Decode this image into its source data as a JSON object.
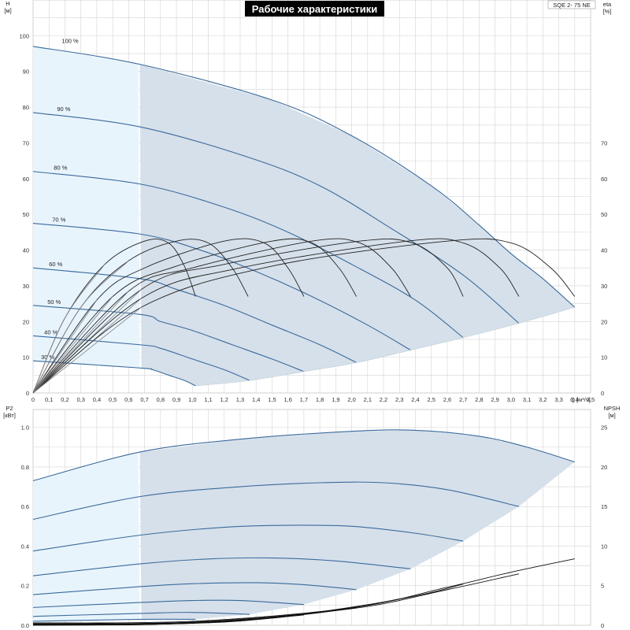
{
  "title": "Рабочие характеристики",
  "model": "SQE 2- 75 NE",
  "colors": {
    "full_region": "#d6e0ea",
    "partial_region": "#e8f4fc",
    "speed_curve": "#3a6a9c",
    "partial_curve": "#8aa6c2",
    "eta_curve": "#222222",
    "npsh_curve": "#111111",
    "grid": "#d4d4d4",
    "title_bg": "#000000"
  },
  "chart_data": [
    {
      "type": "line",
      "name": "head-chart",
      "xlabel": "Q [м³/ч]",
      "ylabel": "H\n[м]",
      "y2label": "eta\n[%]",
      "xlim": [
        0,
        3.5
      ],
      "ylim": [
        0,
        110
      ],
      "y2lim": [
        0,
        110
      ],
      "x_ticks": [
        "0",
        "0,1",
        "0,2",
        "0,3",
        "0,4",
        "0,5",
        "0,6",
        "0,7",
        "0,8",
        "0,9",
        "1,0",
        "1,1",
        "1,2",
        "1,3",
        "1,4",
        "1,5",
        "1,6",
        "1,7",
        "1,8",
        "1,9",
        "2,0",
        "2,1",
        "2,2",
        "2,3",
        "2,4",
        "2,5",
        "2,6",
        "2,7",
        "2,8",
        "2,9",
        "3,0",
        "3,1",
        "3,2",
        "3,3",
        "3,4",
        "3,5"
      ],
      "y_ticks": [
        "0",
        "10",
        "20",
        "30",
        "40",
        "50",
        "60",
        "70",
        "80",
        "90",
        "100"
      ],
      "y2_ticks": [
        "0",
        "10",
        "20",
        "30",
        "40",
        "50",
        "60",
        "70"
      ],
      "min_flow": 0.67,
      "speed_curves": [
        {
          "label": "100 %",
          "label_x": 0.18,
          "label_y": 97.5,
          "points": [
            [
              0,
              97
            ],
            [
              0.67,
              92
            ],
            [
              1.5,
              82
            ],
            [
              2.0,
              72
            ],
            [
              2.5,
              58
            ],
            [
              2.8,
              47
            ],
            [
              3.0,
              39
            ],
            [
              3.2,
              32
            ],
            [
              3.4,
              24
            ]
          ]
        },
        {
          "label": "90 %",
          "label_x": 0.15,
          "label_y": 78.5,
          "points": [
            [
              0,
              78.5
            ],
            [
              0.67,
              74.5
            ],
            [
              1.35,
              66
            ],
            [
              1.8,
              58
            ],
            [
              2.25,
              46
            ],
            [
              2.7,
              33
            ],
            [
              3.05,
              19.5
            ]
          ]
        },
        {
          "label": "80 %",
          "label_x": 0.13,
          "label_y": 62,
          "points": [
            [
              0,
              62
            ],
            [
              0.67,
              58.5
            ],
            [
              1.2,
              52
            ],
            [
              1.6,
              45
            ],
            [
              2.0,
              36
            ],
            [
              2.4,
              26
            ],
            [
              2.7,
              15.5
            ]
          ]
        },
        {
          "label": "70 %",
          "label_x": 0.12,
          "label_y": 47.5,
          "points": [
            [
              0,
              47.5
            ],
            [
              0.67,
              44.5
            ],
            [
              1.05,
              40
            ],
            [
              1.4,
              34
            ],
            [
              1.75,
              27
            ],
            [
              2.1,
              19
            ],
            [
              2.37,
              12
            ]
          ]
        },
        {
          "label": "60 %",
          "label_x": 0.1,
          "label_y": 35,
          "points": [
            [
              0,
              35
            ],
            [
              0.67,
              32
            ],
            [
              0.9,
              29
            ],
            [
              1.2,
              24.5
            ],
            [
              1.5,
              19
            ],
            [
              1.8,
              13.5
            ],
            [
              2.03,
              8.5
            ]
          ]
        },
        {
          "label": "50 %",
          "label_x": 0.09,
          "label_y": 24.5,
          "points": [
            [
              0,
              24.5
            ],
            [
              0.67,
              22
            ],
            [
              0.8,
              20
            ],
            [
              1.0,
              17.5
            ],
            [
              1.25,
              13.5
            ],
            [
              1.5,
              9.5
            ],
            [
              1.7,
              6
            ]
          ]
        },
        {
          "label": "40 %",
          "label_x": 0.07,
          "label_y": 16,
          "points": [
            [
              0,
              16
            ],
            [
              0.67,
              13.5
            ],
            [
              0.8,
              12.5
            ],
            [
              1.0,
              9.5
            ],
            [
              1.2,
              6.5
            ],
            [
              1.36,
              3.5
            ]
          ]
        },
        {
          "label": "30 %",
          "label_x": 0.05,
          "label_y": 9,
          "points": [
            [
              0,
              9
            ],
            [
              0.67,
              7
            ],
            [
              0.75,
              6.5
            ],
            [
              0.85,
              5
            ],
            [
              0.95,
              3.5
            ],
            [
              1.02,
              2
            ]
          ]
        }
      ],
      "eta_curves": [
        {
          "points": [
            [
              0,
              0
            ],
            [
              0.2,
              21
            ],
            [
              0.45,
              36
            ],
            [
              0.7,
              42.5
            ],
            [
              0.85,
              42
            ],
            [
              0.95,
              35.5
            ],
            [
              1.02,
              27
            ]
          ]
        },
        {
          "points": [
            [
              0,
              0
            ],
            [
              0.3,
              24
            ],
            [
              0.6,
              37
            ],
            [
              0.9,
              42.5
            ],
            [
              1.1,
              42
            ],
            [
              1.25,
              35
            ],
            [
              1.35,
              27
            ]
          ]
        },
        {
          "points": [
            [
              0,
              0
            ],
            [
              0.4,
              26
            ],
            [
              0.7,
              35
            ],
            [
              1.2,
              42.5
            ],
            [
              1.45,
              42
            ],
            [
              1.6,
              35
            ],
            [
              1.7,
              27
            ]
          ]
        },
        {
          "points": [
            [
              0,
              0
            ],
            [
              0.5,
              27
            ],
            [
              0.9,
              35.5
            ],
            [
              1.5,
              42.5
            ],
            [
              1.75,
              42
            ],
            [
              1.92,
              35
            ],
            [
              2.03,
              27
            ]
          ]
        },
        {
          "points": [
            [
              0,
              0
            ],
            [
              0.6,
              28.5
            ],
            [
              1.0,
              35
            ],
            [
              1.75,
              42.5
            ],
            [
              2.05,
              42
            ],
            [
              2.25,
              35
            ],
            [
              2.37,
              27
            ]
          ]
        },
        {
          "points": [
            [
              0,
              0
            ],
            [
              0.68,
              29
            ],
            [
              1.2,
              36
            ],
            [
              2.05,
              42.5
            ],
            [
              2.38,
              42
            ],
            [
              2.6,
              35
            ],
            [
              2.7,
              27
            ]
          ]
        },
        {
          "points": [
            [
              0,
              0
            ],
            [
              0.68,
              26.5
            ],
            [
              1.3,
              35
            ],
            [
              2.35,
              42.5
            ],
            [
              2.7,
              42
            ],
            [
              2.93,
              35
            ],
            [
              3.05,
              27
            ]
          ]
        },
        {
          "points": [
            [
              0,
              0
            ],
            [
              0.68,
              24
            ],
            [
              1.5,
              35.5
            ],
            [
              2.6,
              42.5
            ],
            [
              3.0,
              42
            ],
            [
              3.25,
              35
            ],
            [
              3.4,
              27
            ]
          ]
        }
      ],
      "boundary": [
        [
          1.02,
          2
        ],
        [
          1.36,
          3.5
        ],
        [
          1.7,
          6
        ],
        [
          2.03,
          8.5
        ],
        [
          2.37,
          12
        ],
        [
          2.7,
          15.5
        ],
        [
          3.05,
          19.5
        ],
        [
          3.4,
          24
        ]
      ]
    },
    {
      "type": "line",
      "name": "power-chart",
      "xlabel": "",
      "ylabel": "P2\n[кВт]",
      "y2label": "NPSH\n[м]",
      "xlim": [
        0,
        3.5
      ],
      "ylim": [
        0,
        1.09
      ],
      "y2lim": [
        0,
        27.25
      ],
      "y_ticks": [
        "0.0",
        "0.2",
        "0.4",
        "0.6",
        "0.8",
        "1.0"
      ],
      "y2_ticks": [
        "0",
        "5",
        "10",
        "15",
        "20",
        "25"
      ],
      "min_flow": 0.67,
      "power_curves": [
        {
          "points": [
            [
              0,
              0.73
            ],
            [
              0.67,
              0.875
            ],
            [
              1.3,
              0.94
            ],
            [
              2.0,
              0.98
            ],
            [
              2.4,
              0.985
            ],
            [
              2.8,
              0.955
            ],
            [
              3.1,
              0.9
            ],
            [
              3.4,
              0.825
            ]
          ]
        },
        {
          "points": [
            [
              0,
              0.535
            ],
            [
              0.67,
              0.65
            ],
            [
              1.3,
              0.7
            ],
            [
              1.8,
              0.72
            ],
            [
              2.2,
              0.72
            ],
            [
              2.6,
              0.685
            ],
            [
              3.05,
              0.6
            ]
          ]
        },
        {
          "points": [
            [
              0,
              0.375
            ],
            [
              0.67,
              0.455
            ],
            [
              1.2,
              0.495
            ],
            [
              1.6,
              0.505
            ],
            [
              2.0,
              0.5
            ],
            [
              2.4,
              0.465
            ],
            [
              2.7,
              0.425
            ]
          ]
        },
        {
          "points": [
            [
              0,
              0.25
            ],
            [
              0.67,
              0.31
            ],
            [
              1.1,
              0.335
            ],
            [
              1.5,
              0.34
            ],
            [
              1.9,
              0.325
            ],
            [
              2.37,
              0.285
            ]
          ]
        },
        {
          "points": [
            [
              0,
              0.155
            ],
            [
              0.67,
              0.195
            ],
            [
              1.0,
              0.21
            ],
            [
              1.4,
              0.215
            ],
            [
              1.7,
              0.205
            ],
            [
              2.03,
              0.18
            ]
          ]
        },
        {
          "points": [
            [
              0,
              0.09
            ],
            [
              0.67,
              0.115
            ],
            [
              1.0,
              0.125
            ],
            [
              1.3,
              0.125
            ],
            [
              1.7,
              0.105
            ]
          ]
        },
        {
          "points": [
            [
              0,
              0.045
            ],
            [
              0.67,
              0.06
            ],
            [
              1.0,
              0.065
            ],
            [
              1.36,
              0.055
            ]
          ]
        },
        {
          "points": [
            [
              0,
              0.02
            ],
            [
              0.67,
              0.03
            ],
            [
              1.02,
              0.03
            ]
          ]
        }
      ],
      "npsh_curves": [
        {
          "points": [
            [
              0,
              0.3
            ],
            [
              1.0,
              0.5
            ],
            [
              2.0,
              2.2
            ],
            [
              2.6,
              4.8
            ],
            [
              3.0,
              6.7
            ],
            [
              3.4,
              8.4
            ]
          ]
        },
        {
          "points": [
            [
              0,
              0.2
            ],
            [
              1.0,
              0.4
            ],
            [
              2.0,
              2.1
            ],
            [
              2.6,
              4.5
            ],
            [
              3.05,
              6.5
            ]
          ]
        },
        {
          "points": [
            [
              0,
              0.15
            ],
            [
              1.0,
              0.35
            ],
            [
              1.8,
              1.6
            ],
            [
              2.4,
              3.7
            ],
            [
              2.7,
              5.2
            ]
          ]
        },
        {
          "points": [
            [
              0,
              0.1
            ],
            [
              1.0,
              0.3
            ],
            [
              1.6,
              1.2
            ],
            [
              2.1,
              2.6
            ],
            [
              2.37,
              3.6
            ]
          ]
        },
        {
          "points": [
            [
              0,
              0.05
            ],
            [
              1.0,
              0.25
            ],
            [
              1.5,
              0.9
            ],
            [
              2.03,
              2.2
            ]
          ]
        },
        {
          "points": [
            [
              0,
              0.03
            ],
            [
              0.8,
              0.15
            ],
            [
              1.3,
              0.6
            ],
            [
              1.7,
              1.3
            ]
          ]
        },
        {
          "points": [
            [
              0,
              0.02
            ],
            [
              0.7,
              0.1
            ],
            [
              1.1,
              0.35
            ],
            [
              1.36,
              0.7
            ]
          ]
        },
        {
          "points": [
            [
              0,
              0.01
            ],
            [
              0.6,
              0.05
            ],
            [
              1.02,
              0.3
            ]
          ]
        }
      ],
      "boundary_power": [
        [
          1.02,
          0.03
        ],
        [
          1.36,
          0.055
        ],
        [
          1.7,
          0.105
        ],
        [
          2.03,
          0.18
        ],
        [
          2.37,
          0.285
        ],
        [
          2.7,
          0.425
        ],
        [
          3.05,
          0.6
        ],
        [
          3.4,
          0.825
        ]
      ]
    }
  ]
}
